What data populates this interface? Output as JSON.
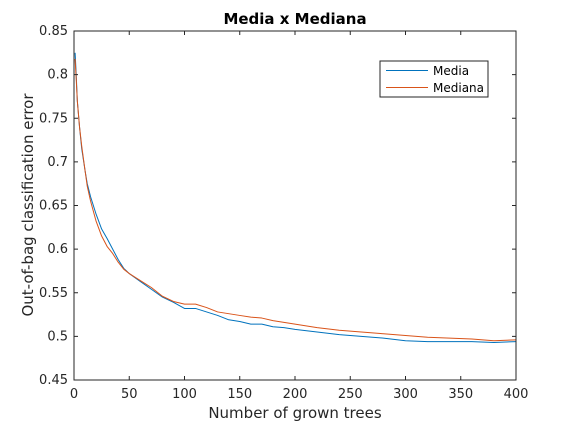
{
  "chart_data": {
    "type": "line",
    "title": "Media x Mediana",
    "xlabel": "Number of grown trees",
    "ylabel": "Out-of-bag classification error",
    "xlim": [
      0,
      400
    ],
    "ylim": [
      0.45,
      0.85
    ],
    "xticks": [
      0,
      50,
      100,
      150,
      200,
      250,
      300,
      350,
      400
    ],
    "xtick_labels": [
      "0",
      "50",
      "100",
      "150",
      "200",
      "250",
      "300",
      "350",
      "400"
    ],
    "yticks": [
      0.45,
      0.5,
      0.55,
      0.6,
      0.65,
      0.7,
      0.75,
      0.8,
      0.85
    ],
    "ytick_labels": [
      "0.45",
      "0.5",
      "0.55",
      "0.6",
      "0.65",
      "0.7",
      "0.75",
      "0.8",
      "0.85"
    ],
    "grid": false,
    "legend_position": "top-right",
    "series": [
      {
        "name": "Media",
        "color": "#0072BD",
        "x": [
          1,
          2,
          3,
          5,
          7,
          10,
          12,
          15,
          20,
          25,
          30,
          35,
          40,
          45,
          50,
          60,
          70,
          80,
          90,
          100,
          110,
          120,
          130,
          140,
          150,
          160,
          170,
          180,
          190,
          200,
          220,
          240,
          260,
          280,
          300,
          320,
          340,
          360,
          380,
          400
        ],
        "y": [
          0.825,
          0.8,
          0.77,
          0.74,
          0.715,
          0.69,
          0.675,
          0.66,
          0.64,
          0.623,
          0.612,
          0.6,
          0.588,
          0.578,
          0.572,
          0.563,
          0.554,
          0.545,
          0.539,
          0.532,
          0.532,
          0.528,
          0.524,
          0.519,
          0.517,
          0.514,
          0.514,
          0.511,
          0.51,
          0.508,
          0.505,
          0.502,
          0.5,
          0.498,
          0.495,
          0.494,
          0.494,
          0.494,
          0.493,
          0.494
        ]
      },
      {
        "name": "Mediana",
        "color": "#D95319",
        "x": [
          1,
          2,
          3,
          5,
          7,
          10,
          12,
          15,
          20,
          25,
          30,
          35,
          40,
          45,
          50,
          60,
          70,
          80,
          90,
          100,
          110,
          120,
          130,
          140,
          150,
          160,
          170,
          180,
          190,
          200,
          220,
          240,
          260,
          280,
          300,
          320,
          340,
          360,
          380,
          400
        ],
        "y": [
          0.818,
          0.795,
          0.77,
          0.74,
          0.718,
          0.69,
          0.672,
          0.655,
          0.632,
          0.615,
          0.603,
          0.595,
          0.585,
          0.577,
          0.572,
          0.564,
          0.556,
          0.546,
          0.54,
          0.537,
          0.537,
          0.533,
          0.528,
          0.526,
          0.524,
          0.522,
          0.521,
          0.518,
          0.516,
          0.514,
          0.51,
          0.507,
          0.505,
          0.503,
          0.501,
          0.499,
          0.498,
          0.497,
          0.495,
          0.496
        ]
      }
    ]
  }
}
